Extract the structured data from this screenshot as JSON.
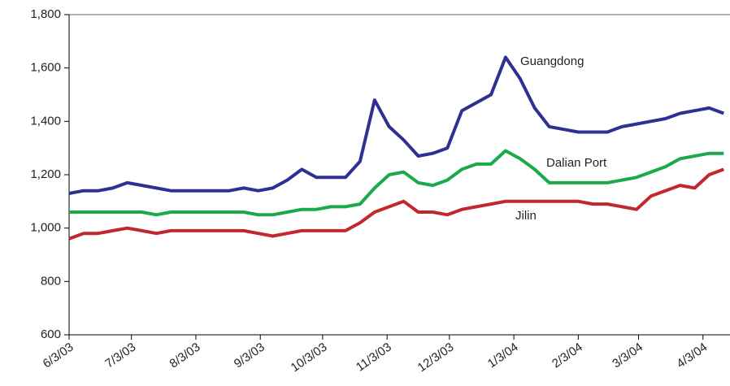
{
  "chart_data": {
    "type": "line",
    "x": [
      "2003-06-03",
      "2003-06-10",
      "2003-06-17",
      "2003-06-24",
      "2003-07-01",
      "2003-07-08",
      "2003-07-15",
      "2003-07-22",
      "2003-07-29",
      "2003-08-05",
      "2003-08-12",
      "2003-08-19",
      "2003-08-26",
      "2003-09-02",
      "2003-09-09",
      "2003-09-16",
      "2003-09-23",
      "2003-09-30",
      "2003-10-07",
      "2003-10-14",
      "2003-10-21",
      "2003-10-28",
      "2003-11-04",
      "2003-11-11",
      "2003-11-18",
      "2003-11-25",
      "2003-12-02",
      "2003-12-09",
      "2003-12-16",
      "2003-12-23",
      "2003-12-30",
      "2004-01-06",
      "2004-01-13",
      "2004-01-20",
      "2004-01-27",
      "2004-02-03",
      "2004-02-10",
      "2004-02-17",
      "2004-02-24",
      "2004-03-02",
      "2004-03-09",
      "2004-03-16",
      "2004-03-23",
      "2004-03-30",
      "2004-04-06",
      "2004-04-13"
    ],
    "series": [
      {
        "name": "Guangdong",
        "color": "#2e3192",
        "values": [
          1130,
          1140,
          1140,
          1150,
          1170,
          1160,
          1150,
          1140,
          1140,
          1140,
          1140,
          1140,
          1150,
          1140,
          1150,
          1180,
          1220,
          1190,
          1190,
          1190,
          1250,
          1480,
          1380,
          1330,
          1270,
          1280,
          1300,
          1440,
          1470,
          1500,
          1640,
          1560,
          1450,
          1380,
          1370,
          1360,
          1360,
          1360,
          1380,
          1390,
          1400,
          1410,
          1430,
          1440,
          1450,
          1430
        ]
      },
      {
        "name": "Dalian Port",
        "color": "#1aaa4a",
        "values": [
          1060,
          1060,
          1060,
          1060,
          1060,
          1060,
          1050,
          1060,
          1060,
          1060,
          1060,
          1060,
          1060,
          1050,
          1050,
          1060,
          1070,
          1070,
          1080,
          1080,
          1090,
          1150,
          1200,
          1210,
          1170,
          1160,
          1180,
          1220,
          1240,
          1240,
          1290,
          1260,
          1220,
          1170,
          1170,
          1170,
          1170,
          1170,
          1180,
          1190,
          1210,
          1230,
          1260,
          1270,
          1280,
          1280
        ]
      },
      {
        "name": "Jilin",
        "color": "#c1272d",
        "values": [
          960,
          980,
          980,
          990,
          1000,
          990,
          980,
          990,
          990,
          990,
          990,
          990,
          990,
          980,
          970,
          980,
          990,
          990,
          990,
          990,
          1020,
          1060,
          1080,
          1100,
          1060,
          1060,
          1050,
          1070,
          1080,
          1090,
          1100,
          1100,
          1100,
          1100,
          1100,
          1100,
          1090,
          1090,
          1080,
          1070,
          1120,
          1140,
          1160,
          1150,
          1200,
          1220
        ]
      }
    ],
    "xlim": [
      "2003-06-03",
      "2004-04-16"
    ],
    "xticks": [
      {
        "value": "2003-06-03",
        "label": "6/3/03"
      },
      {
        "value": "2003-07-03",
        "label": "7/3/03"
      },
      {
        "value": "2003-08-03",
        "label": "8/3/03"
      },
      {
        "value": "2003-09-03",
        "label": "9/3/03"
      },
      {
        "value": "2003-10-03",
        "label": "10/3/03"
      },
      {
        "value": "2003-11-03",
        "label": "11/3/03"
      },
      {
        "value": "2003-12-03",
        "label": "12/3/03"
      },
      {
        "value": "2004-01-03",
        "label": "1/3/04"
      },
      {
        "value": "2004-02-03",
        "label": "2/3/04"
      },
      {
        "value": "2004-03-03",
        "label": "3/3/04"
      },
      {
        "value": "2004-04-03",
        "label": "4/3/04"
      }
    ],
    "ylim": [
      600,
      1800
    ],
    "yticks": [
      600,
      800,
      {
        "value": 1000,
        "label": "1,000"
      },
      {
        "value": 1200,
        "label": "1,200"
      },
      {
        "value": 1400,
        "label": "1,400"
      },
      {
        "value": 1600,
        "label": "1,600"
      },
      {
        "value": 1800,
        "label": "1,800"
      }
    ],
    "grid": false
  }
}
